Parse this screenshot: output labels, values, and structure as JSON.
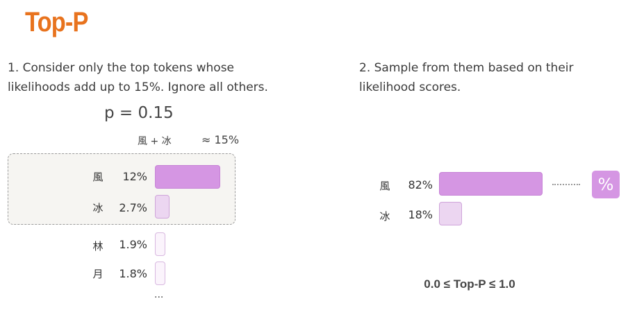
{
  "title": "Top-P",
  "step1": {
    "line1": "1. Consider only the top tokens whose",
    "line2": "likelihoods add up to 15%. Ignore all others."
  },
  "step2": {
    "line1": "2. Sample from them based on their",
    "line2": "likelihood scores."
  },
  "p_label": "p = 0.15",
  "sum_label": "風 + 冰",
  "approx_label": "≈ 15%",
  "left_tokens": [
    {
      "char": "風",
      "pct": "12%",
      "value": 12
    },
    {
      "char": "冰",
      "pct": "2.7%",
      "value": 2.7
    },
    {
      "char": "林",
      "pct": "1.9%",
      "value": 1.9
    },
    {
      "char": "月",
      "pct": "1.8%",
      "value": 1.8
    }
  ],
  "more": "...",
  "right_tokens": [
    {
      "char": "風",
      "pct": "82%",
      "value": 82
    },
    {
      "char": "冰",
      "pct": "18%",
      "value": 18
    }
  ],
  "badge": "%",
  "range_label": "0.0 ≤ Top-P ≤ 1.0",
  "colors": {
    "title": "#e8731e",
    "bar_strong": "#d596e3",
    "bar_light": "#ecd6f1",
    "box_bg": "#f6f5f2"
  }
}
